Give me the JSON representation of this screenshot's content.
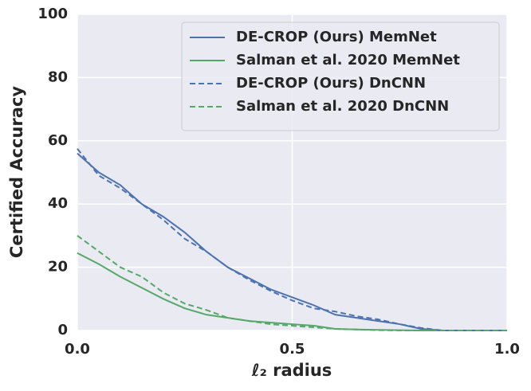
{
  "chart_data": {
    "type": "line",
    "xlabel": "ℓ₂ radius",
    "ylabel": "Certified Accuracy",
    "x": [
      0,
      0.05,
      0.1,
      0.15,
      0.2,
      0.25,
      0.3,
      0.35,
      0.4,
      0.45,
      0.5,
      0.55,
      0.6,
      0.65,
      0.7,
      0.75,
      0.8,
      0.85,
      1.0
    ],
    "series": [
      {
        "name": "DE-CROP (Ours) MemNet",
        "color": "#4c72b0",
        "linestyle": "solid",
        "values": [
          56,
          50,
          46,
          40,
          36,
          31,
          25,
          20,
          16.5,
          13,
          10.5,
          8,
          5,
          4,
          3,
          2,
          0.5,
          0,
          0
        ]
      },
      {
        "name": "Salman et al. 2020 MemNet",
        "color": "#55a868",
        "linestyle": "solid",
        "values": [
          24.5,
          21,
          17,
          13.5,
          10,
          7,
          5,
          4,
          3,
          2.5,
          2,
          1.5,
          0.5,
          0.3,
          0.2,
          0.1,
          0,
          0,
          0
        ]
      },
      {
        "name": "DE-CROP (Ours) DnCNN",
        "color": "#4c72b0",
        "linestyle": "dashed",
        "values": [
          57.5,
          49,
          45,
          40,
          35,
          29,
          25,
          20,
          16,
          12.5,
          9.5,
          7,
          6,
          4.5,
          3.5,
          2,
          0.8,
          0,
          0
        ]
      },
      {
        "name": "Salman et al. 2020 DnCNN",
        "color": "#55a868",
        "linestyle": "dashed",
        "values": [
          30,
          25,
          20,
          17,
          12,
          8.5,
          6.5,
          4,
          3,
          2,
          1.5,
          1,
          0.5,
          0.3,
          0.1,
          0,
          0,
          0,
          0
        ]
      }
    ],
    "xlim": [
      0,
      1
    ],
    "xticks": [
      {
        "value": 0,
        "label": "0.0"
      },
      0.5,
      {
        "value": 1,
        "label": "1.0"
      }
    ],
    "ylim": [
      0,
      100
    ],
    "yticks": [
      0,
      20,
      40,
      60,
      80,
      100
    ],
    "grid": true,
    "legend": "upper right"
  }
}
